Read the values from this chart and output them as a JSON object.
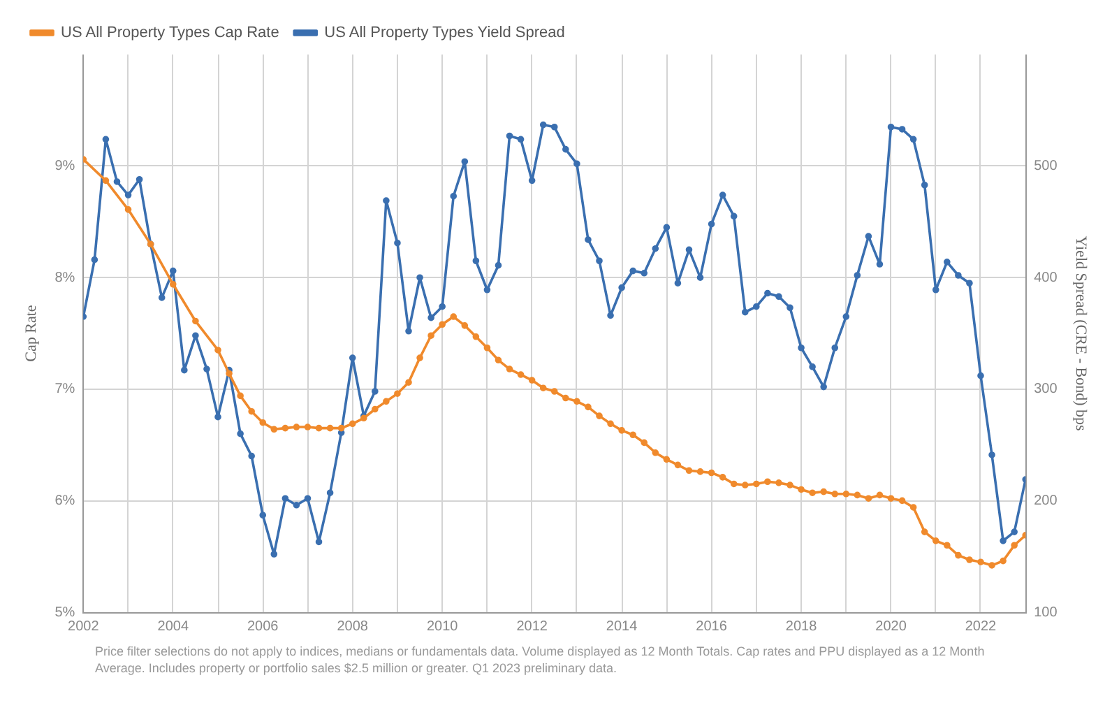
{
  "chart_data": {
    "type": "line",
    "xlim": [
      2002,
      2023
    ],
    "xticks": [
      2002,
      {
        "value": 2003,
        "label": null
      },
      2004,
      {
        "value": 2005,
        "label": null
      },
      2006,
      {
        "value": 2007,
        "label": null
      },
      2008,
      {
        "value": 2009,
        "label": null
      },
      2010,
      {
        "value": 2011,
        "label": null
      },
      2012,
      {
        "value": 2013,
        "label": null
      },
      2014,
      {
        "value": 2015,
        "label": null
      },
      2016,
      {
        "value": 2017,
        "label": null
      },
      2018,
      {
        "value": 2019,
        "label": null
      },
      2020,
      {
        "value": 2021,
        "label": null
      },
      2022
    ],
    "ylabel": "Cap Rate",
    "y2label": "Yield Spread (CRE - Bond) bps",
    "ylim": [
      5,
      10
    ],
    "yticks": [
      {
        "value": 5,
        "label": "5%"
      },
      {
        "value": 6,
        "label": "6%"
      },
      {
        "value": 7,
        "label": "7%"
      },
      {
        "value": 8,
        "label": "8%"
      },
      {
        "value": 9,
        "label": "9%"
      }
    ],
    "y2lim": [
      100,
      600
    ],
    "y2ticks": [
      100,
      200,
      300,
      400,
      500
    ],
    "grid": true,
    "legend": "top left",
    "marker": "circle",
    "line_style": "solid",
    "series": [
      {
        "name": "US All Property Types Cap Rate",
        "color": "#f08a2c",
        "x": [
          2002,
          2002.5,
          2003,
          2003.5,
          2004,
          2004.5,
          2005,
          2005.25,
          2005.5,
          2005.75,
          2006,
          2006.25,
          2006.5,
          2006.75,
          2007,
          2007.25,
          2007.5,
          2007.75,
          2008,
          2008.25,
          2008.5,
          2008.75,
          2009,
          2009.25,
          2009.5,
          2009.75,
          2010,
          2010.25,
          2010.5,
          2010.75,
          2011,
          2011.25,
          2011.5,
          2011.75,
          2012,
          2012.25,
          2012.5,
          2012.75,
          2013,
          2013.25,
          2013.5,
          2013.75,
          2014,
          2014.25,
          2014.5,
          2014.75,
          2015,
          2015.25,
          2015.5,
          2015.75,
          2016,
          2016.25,
          2016.5,
          2016.75,
          2017,
          2017.25,
          2017.5,
          2017.75,
          2018,
          2018.25,
          2018.5,
          2018.75,
          2019,
          2019.25,
          2019.5,
          2019.75,
          2020,
          2020.25,
          2020.5,
          2020.75,
          2021,
          2021.25,
          2021.5,
          2021.75,
          2022,
          2022.25,
          2022.5,
          2022.75,
          2023
        ],
        "values": [
          9.06,
          8.87,
          8.61,
          8.3,
          7.94,
          7.61,
          7.35,
          7.14,
          6.94,
          6.8,
          6.7,
          6.64,
          6.65,
          6.66,
          6.66,
          6.65,
          6.65,
          6.65,
          6.69,
          6.74,
          6.82,
          6.89,
          6.96,
          7.06,
          7.28,
          7.48,
          7.58,
          7.65,
          7.57,
          7.47,
          7.37,
          7.26,
          7.18,
          7.13,
          7.08,
          7.01,
          6.98,
          6.92,
          6.89,
          6.84,
          6.76,
          6.69,
          6.63,
          6.59,
          6.52,
          6.43,
          6.37,
          6.32,
          6.27,
          6.26,
          6.25,
          6.21,
          6.15,
          6.14,
          6.15,
          6.17,
          6.16,
          6.14,
          6.1,
          6.07,
          6.08,
          6.06,
          6.06,
          6.05,
          6.02,
          6.05,
          6.02,
          6.0,
          5.94,
          5.72,
          5.64,
          5.6,
          5.51,
          5.47,
          5.45,
          5.42,
          5.46,
          5.6,
          5.69
        ]
      },
      {
        "name": "US All Property Types Yield Spread",
        "color": "#3a6fb0",
        "axis": "y2",
        "x": [
          2002,
          2002.25,
          2002.5,
          2002.75,
          2003,
          2003.25,
          2003.5,
          2003.75,
          2004,
          2004.25,
          2004.5,
          2004.75,
          2005,
          2005.25,
          2005.5,
          2005.75,
          2006,
          2006.25,
          2006.5,
          2006.75,
          2007,
          2007.25,
          2007.5,
          2007.75,
          2008,
          2008.25,
          2008.5,
          2008.75,
          2009,
          2009.25,
          2009.5,
          2009.75,
          2010,
          2010.25,
          2010.5,
          2010.75,
          2011,
          2011.25,
          2011.5,
          2011.75,
          2012,
          2012.25,
          2012.5,
          2012.75,
          2013,
          2013.25,
          2013.5,
          2013.75,
          2014,
          2014.25,
          2014.5,
          2014.75,
          2015,
          2015.25,
          2015.5,
          2015.75,
          2016,
          2016.25,
          2016.5,
          2016.75,
          2017,
          2017.25,
          2017.5,
          2017.75,
          2018,
          2018.25,
          2018.5,
          2018.75,
          2019,
          2019.25,
          2019.5,
          2019.75,
          2020,
          2020.25,
          2020.5,
          2020.75,
          2021,
          2021.25,
          2021.5,
          2021.75,
          2022,
          2022.25,
          2022.5,
          2022.75,
          2023
        ],
        "values": [
          365,
          416,
          524,
          486,
          474,
          488,
          430,
          382,
          406,
          317,
          348,
          318,
          275,
          317,
          260,
          240,
          187,
          152,
          202,
          196,
          202,
          163,
          207,
          261,
          328,
          276,
          298,
          469,
          431,
          352,
          400,
          364,
          374,
          473,
          504,
          415,
          389,
          411,
          527,
          524,
          487,
          537,
          535,
          515,
          502,
          434,
          415,
          366,
          391,
          406,
          404,
          426,
          445,
          395,
          425,
          400,
          448,
          474,
          455,
          369,
          374,
          386,
          383,
          373,
          337,
          320,
          302,
          337,
          365,
          402,
          437,
          412,
          535,
          533,
          524,
          483,
          389,
          414,
          402,
          395,
          312,
          241,
          164,
          172,
          219
        ]
      }
    ],
    "annotations": [
      "Price filter selections do not apply to indices, medians or fundamentals data. Volume displayed as 12 Month Totals. Cap rates and PPU displayed as a 12 Month Average. Includes property or portfolio sales $2.5 million or greater. Q1 2023 preliminary data."
    ]
  }
}
